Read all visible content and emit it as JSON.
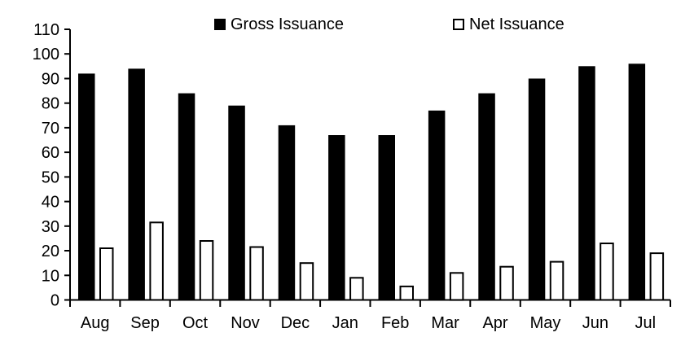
{
  "chart_data": {
    "type": "bar",
    "title": "",
    "xlabel": "",
    "ylabel": "",
    "categories": [
      "Aug",
      "Sep",
      "Oct",
      "Nov",
      "Dec",
      "Jan",
      "Feb",
      "Mar",
      "Apr",
      "May",
      "Jun",
      "Jul"
    ],
    "series": [
      {
        "name": "Gross Issuance",
        "style": "filled",
        "fill_color": "#000000",
        "stroke_color": "#000000",
        "values": [
          92,
          94,
          84,
          79,
          71,
          67,
          67,
          77,
          84,
          90,
          95,
          96
        ]
      },
      {
        "name": "Net Issuance",
        "style": "outline",
        "fill_color": "#ffffff",
        "stroke_color": "#000000",
        "values": [
          21,
          31.5,
          24,
          21.5,
          15,
          9,
          5.5,
          11,
          13.5,
          15.5,
          23,
          19
        ]
      }
    ],
    "ylim": [
      0,
      110
    ],
    "ytick_step": 10,
    "ytick_labels": [
      "0",
      "10",
      "20",
      "30",
      "40",
      "50",
      "60",
      "70",
      "80",
      "90",
      "100",
      "110"
    ],
    "grid": false,
    "legend_position": "top"
  },
  "legend": {
    "items": [
      {
        "label": "Gross Issuance",
        "marker": "filled-square"
      },
      {
        "label": "Net Issuance",
        "marker": "open-square"
      }
    ]
  },
  "colors": {
    "background": "#ffffff",
    "axis": "#000000",
    "bar_gross": "#000000",
    "bar_net_fill": "#ffffff",
    "bar_net_stroke": "#000000"
  }
}
